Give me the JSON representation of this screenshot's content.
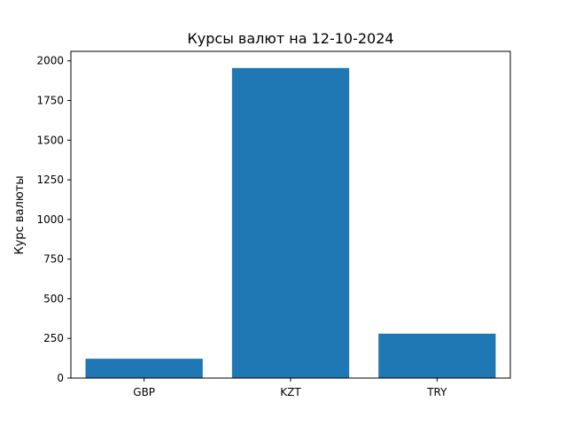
{
  "chart_data": {
    "type": "bar",
    "title": "Курсы валют на 12-10-2024",
    "xlabel": "",
    "ylabel": "Курс валюты",
    "categories": [
      "GBP",
      "KZT",
      "TRY"
    ],
    "values": [
      122,
      1955,
      280
    ],
    "ylim": [
      0,
      2060
    ],
    "yticks": [
      0,
      250,
      500,
      750,
      1000,
      1250,
      1500,
      1750,
      2000
    ],
    "bar_color": "#1f77b4",
    "grid": false,
    "legend": "none"
  }
}
